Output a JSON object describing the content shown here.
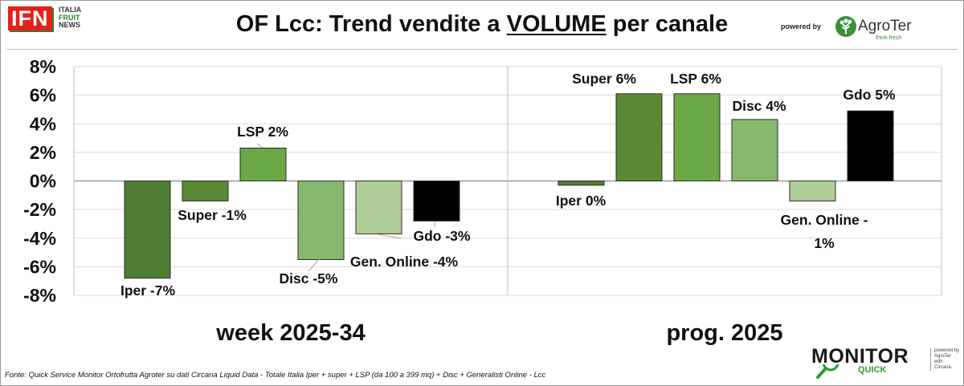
{
  "header": {
    "title_prefix": "OF Lcc: Trend vendite a ",
    "title_underlined": "VOLUME",
    "title_suffix": " per canale",
    "powered_by": "powered by",
    "brand": "AgroTer",
    "brand_tagline": "think fresh"
  },
  "logo_ifn": {
    "mark": "IFN",
    "line1": "ITALIA",
    "line2": "FRUIT",
    "line3": "NEWS"
  },
  "footer": {
    "source": "Fonte: Quick Service Monitor Ortofrutta Agroter su dati Circana Liquid Data - Totale Italia Iper + super + LSP (da 100 a 399 mq) + Disc + Generalisti Online - Lcc",
    "monitor_word": "MONITOR",
    "monitor_quick": "QUICK",
    "monitor_side_1": "powered by",
    "monitor_side_2": "AgroTer",
    "monitor_side_3": "with",
    "monitor_side_4": "Circana."
  },
  "chart_data": {
    "type": "bar",
    "ylim": [
      -8,
      8
    ],
    "yticks": [
      8,
      6,
      4,
      2,
      0,
      -2,
      -4,
      -6,
      -8
    ],
    "ytick_labels": [
      "8%",
      "6%",
      "4%",
      "2%",
      "0%",
      "-2%",
      "-4%",
      "-6%",
      "-8%"
    ],
    "grid": true,
    "panels": [
      {
        "label": "week 2025-34",
        "bars": [
          {
            "category": "Iper",
            "value": -6.8,
            "label": "Iper -7%",
            "color": "#4e7c32"
          },
          {
            "category": "Super",
            "value": -1.4,
            "label": "Super -1%",
            "color": "#5a8a36"
          },
          {
            "category": "LSP",
            "value": 2.3,
            "label": "LSP 2%",
            "color": "#6aa845"
          },
          {
            "category": "Disc",
            "value": -5.5,
            "label": "Disc -5%",
            "color": "#85b76d"
          },
          {
            "category": "Gen. Online",
            "value": -3.7,
            "label": "Gen. Online -4%",
            "color": "#b0cd98"
          },
          {
            "category": "Gdo",
            "value": -2.8,
            "label": "Gdo -3%",
            "color": "#000000"
          }
        ]
      },
      {
        "label": "prog. 2025",
        "bars": [
          {
            "category": "Iper",
            "value": -0.3,
            "label": "Iper 0%",
            "color": "#4e7c32"
          },
          {
            "category": "Super",
            "value": 6.1,
            "label": "Super 6%",
            "color": "#5a8a36"
          },
          {
            "category": "LSP",
            "value": 6.1,
            "label": "LSP 6%",
            "color": "#6aa845"
          },
          {
            "category": "Disc",
            "value": 4.3,
            "label": "Disc 4%",
            "color": "#85b76d"
          },
          {
            "category": "Gen. Online",
            "value": -1.4,
            "label_lines": [
              "Gen. Online -",
              "1%"
            ],
            "color": "#b0cd98"
          },
          {
            "category": "Gdo",
            "value": 4.9,
            "label": "Gdo 5%",
            "color": "#000000"
          }
        ]
      }
    ]
  }
}
